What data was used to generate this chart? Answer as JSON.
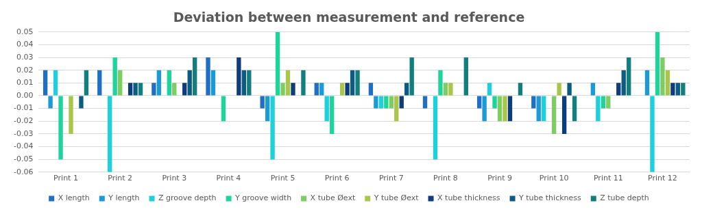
{
  "chart_data": {
    "type": "bar",
    "title": "Deviation between measurement and reference",
    "categories": [
      "Print 1",
      "Print 2",
      "Print 3",
      "Print 4",
      "Print 5",
      "Print 6",
      "Print 7",
      "Print 8",
      "Print 9",
      "Print 10",
      "Print 11",
      "Print 12"
    ],
    "series": [
      {
        "name": "X length",
        "color": "#1f6fc4",
        "values": [
          0.02,
          0.02,
          0.01,
          0.03,
          -0.01,
          0.01,
          0.01,
          -0.01,
          -0.01,
          -0.01,
          0,
          0
        ]
      },
      {
        "name": "Y length",
        "color": "#1a9ad6",
        "values": [
          -0.01,
          0,
          0.02,
          0.02,
          -0.02,
          0.01,
          -0.01,
          0,
          -0.02,
          -0.02,
          0.01,
          0.02
        ]
      },
      {
        "name": "Z groove depth",
        "color": "#1ecfdc",
        "values": [
          0.02,
          -0.06,
          0,
          0,
          -0.05,
          -0.02,
          -0.01,
          -0.05,
          0.01,
          -0.02,
          -0.02,
          -0.06
        ]
      },
      {
        "name": "Y groove width",
        "color": "#1ed49a",
        "values": [
          -0.05,
          0.03,
          0.02,
          -0.02,
          0.05,
          -0.03,
          -0.01,
          0.02,
          -0.01,
          0,
          -0.01,
          0.05
        ]
      },
      {
        "name": "X tube Øext",
        "color": "#7ccd62",
        "values": [
          0,
          0.02,
          0.01,
          0,
          0.01,
          0,
          -0.01,
          0.01,
          -0.02,
          -0.03,
          -0.01,
          0.03
        ]
      },
      {
        "name": "Y tube Øext",
        "color": "#a9c64a",
        "values": [
          -0.03,
          0,
          0,
          0,
          0.02,
          0.01,
          -0.02,
          0.01,
          -0.02,
          0.01,
          0,
          0.02
        ]
      },
      {
        "name": "X tube thickness",
        "color": "#0e3d7a",
        "values": [
          0,
          0.01,
          0.01,
          0.03,
          0.01,
          0.01,
          -0.01,
          0,
          -0.02,
          -0.03,
          0.01,
          0.01
        ]
      },
      {
        "name": "Y tube thickness",
        "color": "#0c5b82",
        "values": [
          -0.01,
          0.01,
          0.02,
          0.02,
          0,
          0.02,
          0.01,
          0,
          0,
          0.01,
          0.02,
          0.01
        ]
      },
      {
        "name": "Z tube depth",
        "color": "#127f7e",
        "values": [
          0.02,
          0.01,
          0.03,
          0.02,
          0.02,
          0.02,
          0.03,
          0.03,
          0.01,
          -0.02,
          0.03,
          0.01
        ]
      }
    ],
    "ylim": [
      -0.06,
      0.05
    ],
    "yticks": [
      {
        "value": -0.06,
        "label": "-0.06"
      },
      {
        "value": -0.05,
        "label": "-0.05"
      },
      {
        "value": -0.04,
        "label": "-0.04"
      },
      {
        "value": -0.03,
        "label": "-0.03"
      },
      {
        "value": -0.02,
        "label": "-0.02"
      },
      {
        "value": -0.01,
        "label": "-0.01"
      },
      {
        "value": 0,
        "label": "0.00"
      },
      {
        "value": 0.01,
        "label": "0.01"
      },
      {
        "value": 0.02,
        "label": "0.02"
      },
      {
        "value": 0.03,
        "label": "0.03"
      },
      {
        "value": 0.04,
        "label": "0.04"
      },
      {
        "value": 0.05,
        "label": "0.05"
      }
    ],
    "grid": "y",
    "legend": "bottom"
  }
}
